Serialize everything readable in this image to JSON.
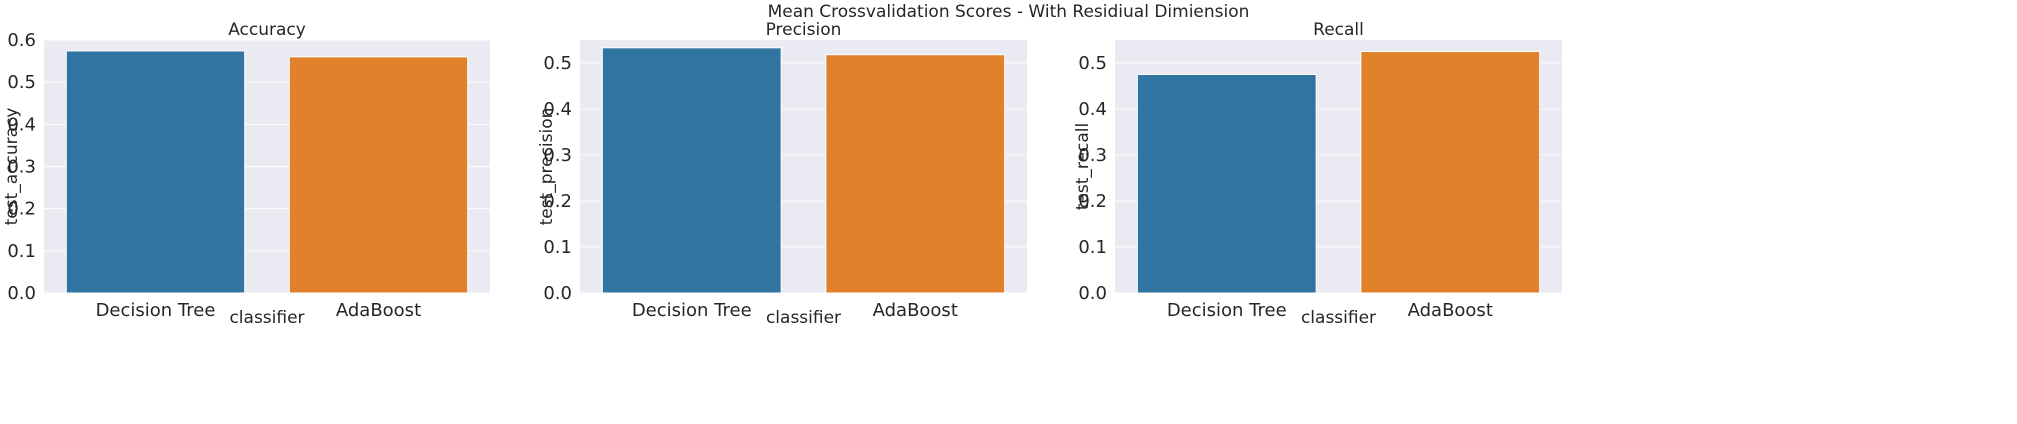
{
  "suptitle": "Mean Crossvalidation Scores - With Residiual Dimiension",
  "chart_data": [
    {
      "type": "bar",
      "title": "Accuracy",
      "xlabel": "classifier",
      "ylabel": "test_accuracy",
      "categories": [
        "Decision Tree",
        "AdaBoost"
      ],
      "values": [
        0.574,
        0.56
      ],
      "colors": [
        "#3274a1",
        "#e1812c"
      ],
      "ylim": [
        0,
        0.6
      ],
      "yticks": [
        0.0,
        0.1,
        0.2,
        0.3,
        0.4,
        0.5,
        0.6
      ],
      "yticklabels": [
        "0.0",
        "0.1",
        "0.2",
        "0.3",
        "0.4",
        "0.5",
        "0.6"
      ],
      "grid": true,
      "background": "#eaeaf2"
    },
    {
      "type": "bar",
      "title": "Precision",
      "xlabel": "classifier",
      "ylabel": "test_precision",
      "categories": [
        "Decision Tree",
        "AdaBoost"
      ],
      "values": [
        0.533,
        0.518
      ],
      "colors": [
        "#3274a1",
        "#e1812c"
      ],
      "ylim": [
        0,
        0.55
      ],
      "yticks": [
        0.0,
        0.1,
        0.2,
        0.3,
        0.4,
        0.5
      ],
      "yticklabels": [
        "0.0",
        "0.1",
        "0.2",
        "0.3",
        "0.4",
        "0.5"
      ],
      "grid": true,
      "background": "#eaeaf2"
    },
    {
      "type": "bar",
      "title": "Recall",
      "xlabel": "classifier",
      "ylabel": "test_recall",
      "categories": [
        "Decision Tree",
        "AdaBoost"
      ],
      "values": [
        0.475,
        0.525
      ],
      "colors": [
        "#3274a1",
        "#e1812c"
      ],
      "ylim": [
        0,
        0.55
      ],
      "yticks": [
        0.0,
        0.1,
        0.2,
        0.3,
        0.4,
        0.5
      ],
      "yticklabels": [
        "0.0",
        "0.1",
        "0.2",
        "0.3",
        "0.4",
        "0.5"
      ],
      "grid": true,
      "background": "#eaeaf2"
    }
  ]
}
